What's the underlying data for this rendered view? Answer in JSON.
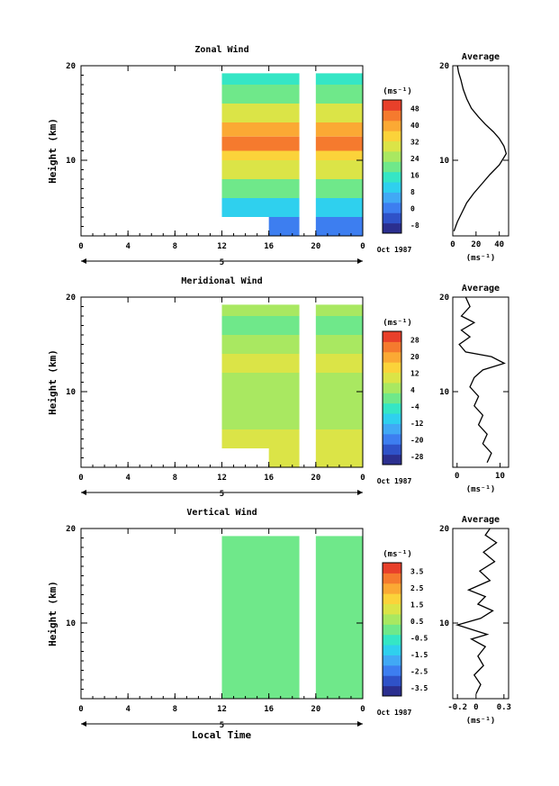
{
  "figure": {
    "xlabel": "Local Time",
    "date_label": "Oct 1987",
    "day_label": "5"
  },
  "chart_data": [
    {
      "type": "heatmap",
      "title": "Zonal Wind",
      "ylabel": "Height (km)",
      "unit_label": "(ms⁻¹)",
      "xlim": [
        0,
        24
      ],
      "ylim": [
        2,
        20
      ],
      "x_ticks": [
        "0",
        "4",
        "8",
        "12",
        "16",
        "20",
        "0"
      ],
      "y_ticks": [
        "10",
        "20"
      ],
      "colorbar_ticks": [
        "48",
        "40",
        "32",
        "24",
        "16",
        "8",
        "0",
        "-8"
      ],
      "colorbar_range": [
        -12,
        52
      ],
      "data_gaps_hours": [
        [
          0,
          12
        ],
        [
          18.6,
          20
        ]
      ],
      "cells": [
        {
          "z0": 18,
          "z1": 20,
          "value": 16
        },
        {
          "z0": 16,
          "z1": 18,
          "value": 22
        },
        {
          "z0": 14,
          "z1": 16,
          "value": 30
        },
        {
          "z0": 12.5,
          "z1": 14,
          "value": 38
        },
        {
          "z0": 11,
          "z1": 12.5,
          "value": 46
        },
        {
          "z0": 10,
          "z1": 11,
          "value": 36
        },
        {
          "z0": 8,
          "z1": 10,
          "value": 28
        },
        {
          "z0": 6,
          "z1": 8,
          "value": 20
        },
        {
          "z0": 4,
          "z1": 6,
          "value": 10
        },
        {
          "z0": 2,
          "z1": 4,
          "value": -2
        }
      ],
      "profile": {
        "title": "Average",
        "unit_label": "(ms⁻¹)",
        "x_ticks": [
          "0",
          "20",
          "40"
        ],
        "xlim": [
          0,
          48
        ],
        "y_ticks": [
          "10",
          "20"
        ],
        "ylim": [
          2,
          20
        ],
        "x": [
          1,
          4,
          8,
          12,
          18,
          25,
          32,
          40,
          46,
          44,
          40,
          35,
          28,
          22,
          16,
          12,
          9,
          7,
          5,
          4
        ],
        "y": [
          2.5,
          3.5,
          4.5,
          5.5,
          6.5,
          7.5,
          8.5,
          9.5,
          10.7,
          11.5,
          12.3,
          13,
          13.8,
          14.6,
          15.5,
          16.5,
          17.5,
          18.5,
          19.3,
          20
        ]
      }
    },
    {
      "type": "heatmap",
      "title": "Meridional Wind",
      "ylabel": "Height (km)",
      "unit_label": "(ms⁻¹)",
      "xlim": [
        0,
        24
      ],
      "ylim": [
        2,
        20
      ],
      "x_ticks": [
        "0",
        "4",
        "8",
        "12",
        "16",
        "20",
        "0"
      ],
      "y_ticks": [
        "10",
        "20"
      ],
      "colorbar_ticks": [
        "28",
        "20",
        "12",
        "4",
        "-4",
        "-12",
        "-20",
        "-28"
      ],
      "colorbar_range": [
        -32,
        32
      ],
      "data_gaps_hours": [
        [
          0,
          12
        ],
        [
          18.6,
          20
        ]
      ],
      "cells": [
        {
          "z0": 18,
          "z1": 20,
          "value": 4
        },
        {
          "z0": 16,
          "z1": 18,
          "value": 2
        },
        {
          "z0": 14,
          "z1": 16,
          "value": 6
        },
        {
          "z0": 12,
          "z1": 14,
          "value": 10
        },
        {
          "z0": 10,
          "z1": 12,
          "value": 5
        },
        {
          "z0": 8,
          "z1": 10,
          "value": 4
        },
        {
          "z0": 6,
          "z1": 8,
          "value": 7
        },
        {
          "z0": 4,
          "z1": 6,
          "value": 9
        },
        {
          "z0": 2,
          "z1": 4,
          "value": 8
        }
      ],
      "profile": {
        "title": "Average",
        "unit_label": "(ms⁻¹)",
        "x_ticks": [
          "0",
          "10"
        ],
        "xlim": [
          -1,
          12
        ],
        "y_ticks": [
          "10",
          "20"
        ],
        "ylim": [
          2,
          20
        ],
        "x": [
          7,
          8,
          6,
          7,
          5,
          6,
          4,
          5,
          3,
          4,
          6,
          11,
          8,
          2,
          0.5,
          3,
          1,
          4,
          1,
          3,
          2
        ],
        "y": [
          2.5,
          3.5,
          4.5,
          5.5,
          6.5,
          7.5,
          8.5,
          9.5,
          10.5,
          11.5,
          12.3,
          13,
          13.7,
          14.2,
          15,
          15.8,
          16.5,
          17.3,
          18,
          19,
          20
        ]
      }
    },
    {
      "type": "heatmap",
      "title": "Vertical Wind",
      "ylabel": "Height (km)",
      "unit_label": "(ms⁻¹)",
      "xlim": [
        0,
        24
      ],
      "ylim": [
        2,
        20
      ],
      "x_ticks": [
        "0",
        "4",
        "8",
        "12",
        "16",
        "20",
        "0"
      ],
      "y_ticks": [
        "10",
        "20"
      ],
      "colorbar_ticks": [
        "3.5",
        "2.5",
        "1.5",
        "0.5",
        "-0.5",
        "-1.5",
        "-2.5",
        "-3.5"
      ],
      "colorbar_range": [
        -4,
        4
      ],
      "data_gaps_hours": [
        [
          0,
          12
        ],
        [
          18.6,
          20
        ]
      ],
      "cells": [
        {
          "z0": 18,
          "z1": 20,
          "value": 0.1
        },
        {
          "z0": 14,
          "z1": 18,
          "value": 0.05
        },
        {
          "z0": 10,
          "z1": 14,
          "value": 0
        },
        {
          "z0": 6,
          "z1": 10,
          "value": -0.05
        },
        {
          "z0": 2,
          "z1": 6,
          "value": 0
        }
      ],
      "profile": {
        "title": "Average",
        "unit_label": "(ms⁻¹)",
        "x_ticks": [
          "-0.2",
          "0",
          "0.3"
        ],
        "xlim": [
          -0.25,
          0.35
        ],
        "y_ticks": [
          "10",
          "20"
        ],
        "ylim": [
          2,
          20
        ],
        "x": [
          0,
          0.05,
          -0.02,
          0.08,
          0.02,
          0.1,
          -0.05,
          0.12,
          -0.2,
          0.05,
          0.18,
          0.02,
          0.1,
          -0.08,
          0.15,
          0.04,
          0.2,
          0.08,
          0.22,
          0.1,
          0.15
        ],
        "y": [
          2.5,
          3.5,
          4.5,
          5.5,
          6.5,
          7.5,
          8.3,
          8.8,
          9.8,
          10.5,
          11.3,
          12,
          12.8,
          13.5,
          14.5,
          15.5,
          16.5,
          17.5,
          18.5,
          19.3,
          20
        ]
      }
    }
  ]
}
